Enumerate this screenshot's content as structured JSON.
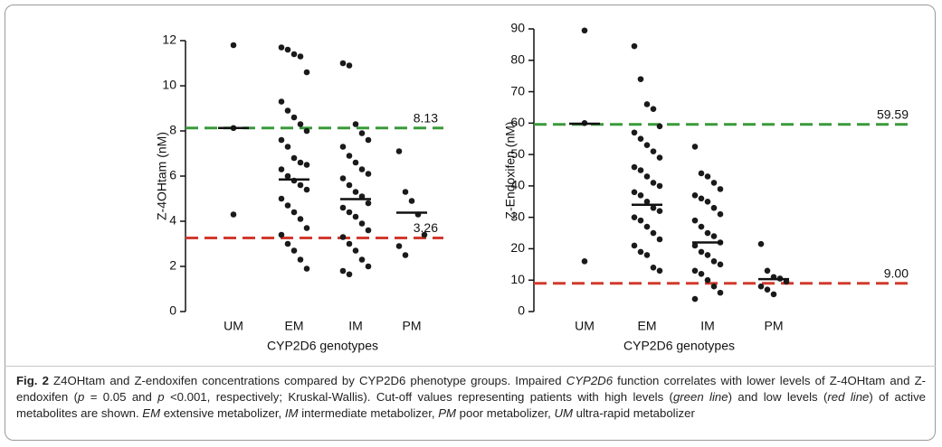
{
  "chart_data": [
    {
      "type": "strip",
      "ylabel": "Z-4OHtam (nM)",
      "xlabel": "CYP2D6 genotypes",
      "categories": [
        "UM",
        "EM",
        "IM",
        "PM"
      ],
      "values": [
        [
          11.8,
          8.13,
          4.3
        ],
        [
          11.7,
          11.6,
          11.4,
          11.3,
          10.6,
          9.3,
          8.9,
          8.6,
          8.3,
          8.0,
          7.6,
          7.3,
          6.8,
          6.6,
          6.5,
          6.3,
          6.0,
          5.8,
          5.6,
          5.4,
          5.0,
          4.7,
          4.4,
          4.1,
          3.7,
          3.4,
          3.0,
          2.7,
          2.3,
          1.9
        ],
        [
          11.0,
          10.9,
          8.3,
          7.9,
          7.6,
          7.3,
          6.9,
          6.6,
          6.3,
          6.1,
          5.9,
          5.6,
          5.3,
          5.1,
          4.8,
          4.6,
          4.4,
          4.2,
          3.9,
          3.6,
          3.3,
          3.0,
          2.7,
          2.3,
          2.0,
          1.8,
          1.65
        ],
        [
          7.1,
          5.3,
          4.9,
          4.3,
          3.4,
          2.9,
          2.5
        ]
      ],
      "medians": [
        8.13,
        5.85,
        4.98,
        4.38
      ],
      "color": "#1a1a1a",
      "hlines": [
        {
          "value": 8.13,
          "color": "#3a9a3a"
        },
        {
          "value": 3.26,
          "color": "#d23a2e"
        }
      ],
      "ylim": [
        0,
        12
      ],
      "yticks": [
        0,
        2,
        4,
        6,
        8,
        10,
        12
      ]
    },
    {
      "type": "strip",
      "ylabel": "Z-Endoxifen (nM)",
      "xlabel": "CYP2D6 genotypes",
      "categories": [
        "UM",
        "EM",
        "IM",
        "PM"
      ],
      "values": [
        [
          89.5,
          60,
          16
        ],
        [
          84.5,
          74,
          66,
          64.5,
          59,
          57,
          55,
          53,
          51,
          49,
          46,
          45,
          43,
          41,
          40,
          38,
          37,
          35,
          33,
          32,
          30,
          29,
          27,
          25,
          23,
          21,
          19,
          18,
          14,
          13
        ],
        [
          52.5,
          44,
          43,
          41,
          39,
          37,
          36,
          35,
          33,
          31,
          29,
          27,
          25,
          24,
          22,
          21,
          19,
          18,
          16,
          15,
          13,
          12,
          10,
          8,
          6,
          4
        ],
        [
          21.5,
          13,
          11,
          10.5,
          9.5,
          8,
          7,
          5.5
        ]
      ],
      "medians": [
        59.8,
        34,
        22,
        10.3
      ],
      "color": "#1a1a1a",
      "hlines": [
        {
          "value": 59.59,
          "color": "#3a9a3a"
        },
        {
          "value": 9,
          "label": "9.00",
          "color": "#d23a2e"
        }
      ],
      "ylim": [
        0,
        90
      ],
      "yticks": [
        0,
        10,
        20,
        30,
        40,
        50,
        60,
        70,
        80,
        90
      ]
    }
  ],
  "caption": {
    "label": "Fig. 2",
    "segments": [
      " Z4OHtam and Z-endoxifen concentrations compared by CYP2D6 phenotype groups. Impaired ",
      "CYP2D6",
      " function correlates with lower levels of Z-4OHtam and Z-endoxifen (",
      "p",
      " = 0.05 and ",
      "p",
      " <0.001, respectively; Kruskal-Wallis). Cut-off values representing patients with high levels (",
      "green line",
      ") and low levels (",
      "red line",
      ") of active metabolites are shown. ",
      "EM",
      " extensive metabolizer, ",
      "IM",
      " intermediate metabolizer, ",
      "PM",
      " poor metabolizer, ",
      "UM",
      " ultra-rapid metabolizer"
    ]
  }
}
